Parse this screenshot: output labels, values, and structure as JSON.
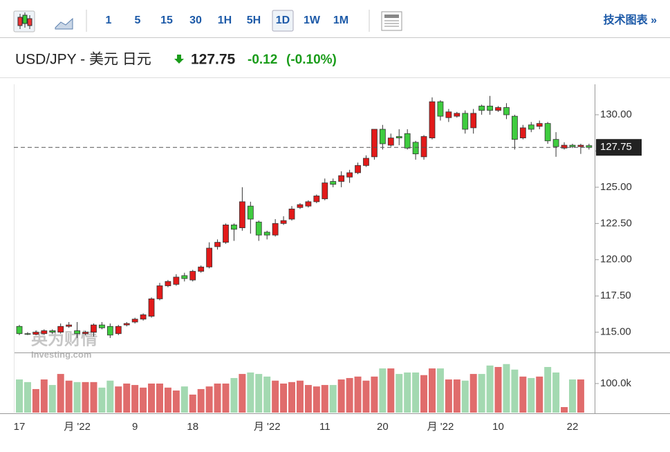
{
  "toolbar": {
    "intervals": [
      "1",
      "5",
      "15",
      "30",
      "1H",
      "5H",
      "1D",
      "1W",
      "1M"
    ],
    "selected": "1D",
    "link": "技术图表 »"
  },
  "quote": {
    "symbol": "USD/JPY - 美元 日元",
    "price": 127.75,
    "change": -0.12,
    "change_percent": "(-0.10%)"
  },
  "watermark": {
    "brand": "英为财情",
    "site": "Investing.com"
  },
  "chart_data": {
    "type": "candlestick",
    "categories": [
      "17",
      null,
      null,
      null,
      null,
      null,
      null,
      "月 '22",
      null,
      null,
      null,
      null,
      null,
      null,
      "9",
      null,
      null,
      null,
      null,
      null,
      null,
      "18",
      null,
      null,
      null,
      null,
      null,
      null,
      null,
      null,
      "月 '22",
      null,
      null,
      null,
      null,
      null,
      null,
      "11",
      null,
      null,
      null,
      null,
      null,
      null,
      "20",
      null,
      null,
      null,
      null,
      null,
      null,
      "月 '22",
      null,
      null,
      null,
      null,
      null,
      null,
      "10",
      null,
      null,
      null,
      null,
      null,
      null,
      null,
      null,
      "22",
      null,
      null
    ],
    "open": [
      115.4,
      114.9,
      114.85,
      114.9,
      115.1,
      115.0,
      115.4,
      115.1,
      114.9,
      115.0,
      115.5,
      115.4,
      114.9,
      115.5,
      115.7,
      115.9,
      116.1,
      117.3,
      118.2,
      118.3,
      118.9,
      118.6,
      119.2,
      119.5,
      120.9,
      121.2,
      122.4,
      122.2,
      123.7,
      122.6,
      121.9,
      121.7,
      122.5,
      122.8,
      123.6,
      123.7,
      124.0,
      124.2,
      125.4,
      125.4,
      125.7,
      126.0,
      126.5,
      127.1,
      129.0,
      127.9,
      128.5,
      128.7,
      128.1,
      127.1,
      128.4,
      130.9,
      129.8,
      129.9,
      130.1,
      129.1,
      130.6,
      130.6,
      130.3,
      130.5,
      129.9,
      128.4,
      129.3,
      129.2,
      129.4,
      128.3,
      127.7,
      127.9,
      127.8,
      127.87
    ],
    "high": [
      115.5,
      115.0,
      115.1,
      115.2,
      115.2,
      115.6,
      115.7,
      115.7,
      115.1,
      115.6,
      115.7,
      115.6,
      115.5,
      115.7,
      116.0,
      116.3,
      117.4,
      118.4,
      118.6,
      119.0,
      119.1,
      119.3,
      119.6,
      121.2,
      121.4,
      122.5,
      122.5,
      125.0,
      124.0,
      122.7,
      122.0,
      122.8,
      123.0,
      123.7,
      123.9,
      124.1,
      124.5,
      125.6,
      125.6,
      126.1,
      126.2,
      126.7,
      127.2,
      129.0,
      129.3,
      128.7,
      129.0,
      129.0,
      128.2,
      128.6,
      131.2,
      131.0,
      130.4,
      130.2,
      130.3,
      130.4,
      130.7,
      131.3,
      130.6,
      130.8,
      130.0,
      129.3,
      129.5,
      129.6,
      129.5,
      128.8,
      128.1,
      128.0,
      128.0,
      128.0
    ],
    "low": [
      114.8,
      114.8,
      114.8,
      114.8,
      114.9,
      114.9,
      115.3,
      114.6,
      114.8,
      114.7,
      115.2,
      114.6,
      114.8,
      115.4,
      115.6,
      115.8,
      116.0,
      117.2,
      118.1,
      118.2,
      118.5,
      118.5,
      119.1,
      119.4,
      120.7,
      121.1,
      121.3,
      122.0,
      121.8,
      121.3,
      121.4,
      121.6,
      122.4,
      122.7,
      123.5,
      123.6,
      123.9,
      124.1,
      125.0,
      125.0,
      125.3,
      125.9,
      126.4,
      126.9,
      127.6,
      127.8,
      127.9,
      127.6,
      126.9,
      126.9,
      128.3,
      129.6,
      129.5,
      129.8,
      128.7,
      128.7,
      130.0,
      130.0,
      130.2,
      129.7,
      127.6,
      128.3,
      128.8,
      129.0,
      128.0,
      127.1,
      127.6,
      127.7,
      127.3,
      127.6
    ],
    "close": [
      114.9,
      114.85,
      115.0,
      115.1,
      115.0,
      115.4,
      115.5,
      114.9,
      115.0,
      115.5,
      115.3,
      114.8,
      115.4,
      115.6,
      115.9,
      116.2,
      117.3,
      118.2,
      118.5,
      118.8,
      118.7,
      119.2,
      119.5,
      120.8,
      121.2,
      122.4,
      122.1,
      124.0,
      122.8,
      121.7,
      121.7,
      122.5,
      122.7,
      123.5,
      123.8,
      124.0,
      124.4,
      125.3,
      125.2,
      125.8,
      126.0,
      126.5,
      127.0,
      129.0,
      128.0,
      128.4,
      128.4,
      127.7,
      127.3,
      128.5,
      130.9,
      129.9,
      130.2,
      130.1,
      129.0,
      130.1,
      130.3,
      130.3,
      130.5,
      130.0,
      128.3,
      129.1,
      129.0,
      129.4,
      128.2,
      127.8,
      127.9,
      127.8,
      127.9,
      127.75
    ],
    "volume": [
      114000,
      105000,
      81000,
      114000,
      95000,
      133000,
      110000,
      105000,
      105000,
      105000,
      86000,
      110000,
      90000,
      100000,
      95000,
      86000,
      100000,
      100000,
      86000,
      76000,
      90000,
      62000,
      81000,
      90000,
      100000,
      100000,
      119000,
      133000,
      138000,
      133000,
      124000,
      110000,
      100000,
      105000,
      110000,
      95000,
      90000,
      95000,
      95000,
      114000,
      119000,
      124000,
      110000,
      124000,
      152000,
      152000,
      133000,
      138000,
      138000,
      129000,
      152000,
      152000,
      114000,
      114000,
      110000,
      133000,
      133000,
      162000,
      157000,
      167000,
      148000,
      124000,
      119000,
      124000,
      157000,
      138000,
      19000,
      114000,
      114000,
      0
    ],
    "up_color": "#e21a1a",
    "down_color": "#3fcc3f",
    "up_volume_color": "#e06c6c",
    "down_volume_color": "#a3d9b1",
    "ylim": [
      113.6,
      132.1
    ],
    "yticks": [
      {
        "value": 115,
        "label": "115.00"
      },
      {
        "value": 117.5,
        "label": "117.50"
      },
      {
        "value": 120,
        "label": "120.00"
      },
      {
        "value": 122.5,
        "label": "122.50"
      },
      {
        "value": 125,
        "label": "125.00"
      },
      {
        "value": 127.5,
        "label": "127.50"
      },
      {
        "value": 130,
        "label": "130.00"
      }
    ],
    "volume_lim": [
      0,
      195000
    ],
    "volume_ticks": [
      {
        "value": 100000,
        "label": "100.0k"
      }
    ]
  }
}
